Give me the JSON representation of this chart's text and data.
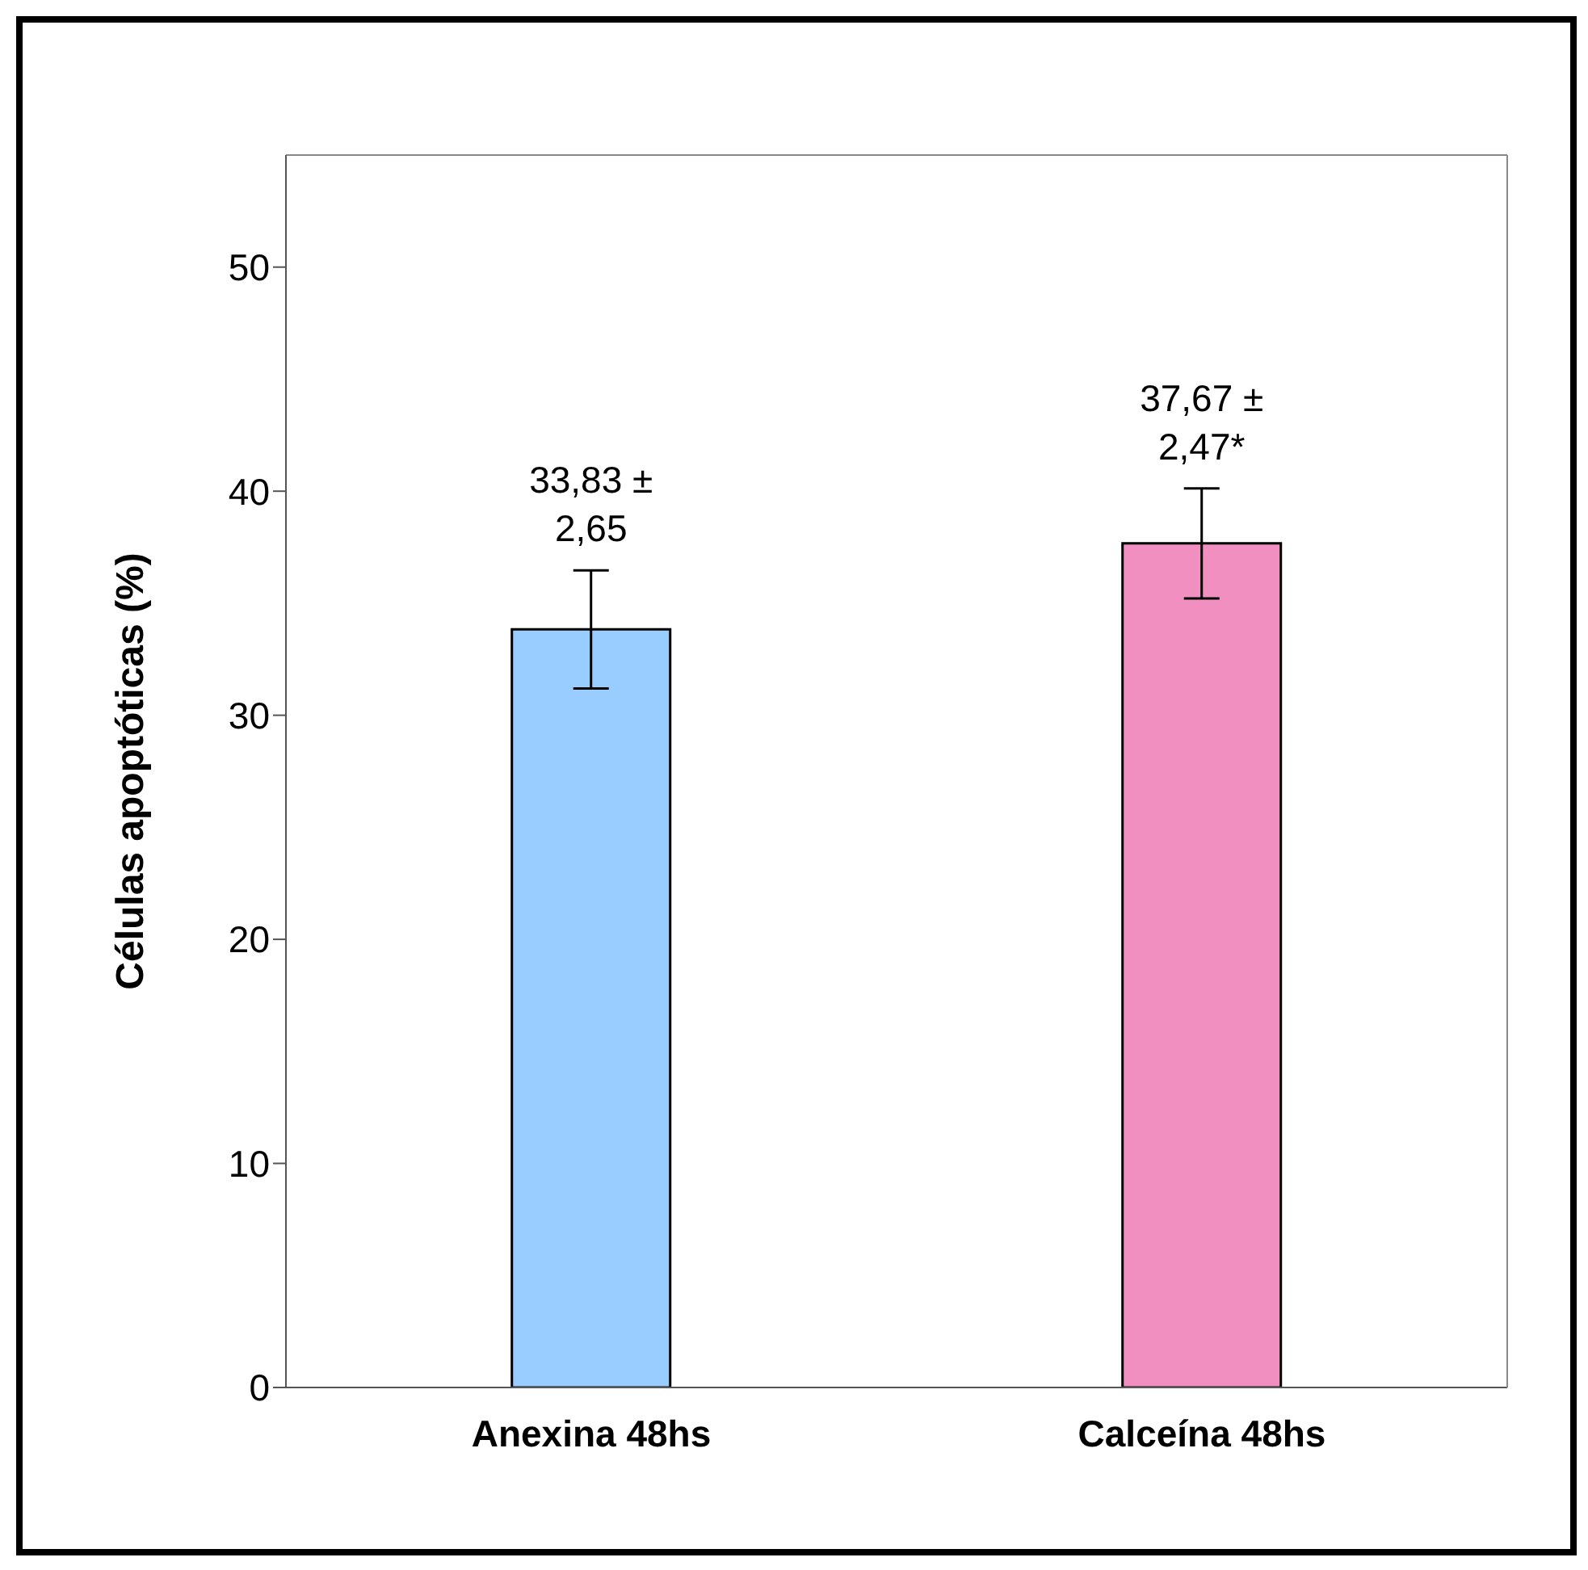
{
  "chart_data": {
    "type": "bar",
    "ylabel": "Células apoptóticas (%)",
    "categories": [
      "Anexina 48hs",
      "Calceína 48hs"
    ],
    "values": [
      33.83,
      37.67
    ],
    "colors": [
      "#99ccff",
      "#f08fc0"
    ],
    "errors": [
      2.65,
      2.47
    ],
    "value_labels": [
      "33,83 ± 2,65",
      "37,67  ± 2,47*"
    ],
    "ylim": [
      0,
      55
    ],
    "yticks": [
      0,
      10,
      20,
      30,
      40,
      50
    ],
    "grid": false,
    "legend": false
  }
}
